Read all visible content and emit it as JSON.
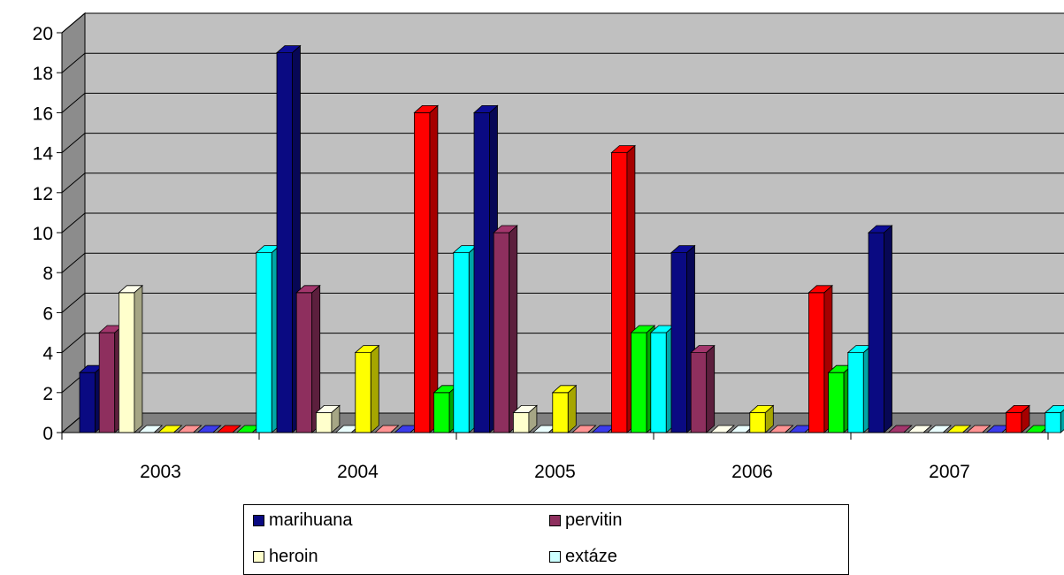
{
  "chart_data": {
    "type": "bar",
    "style": "3d-clustered-column",
    "categories": [
      "2003",
      "2004",
      "2005",
      "2006",
      "2007"
    ],
    "ylim": [
      0,
      20
    ],
    "yticks": [
      0,
      2,
      4,
      6,
      8,
      10,
      12,
      14,
      16,
      18,
      20
    ],
    "grid": true,
    "legend_position": "bottom",
    "series": [
      {
        "name": "marihuana",
        "color": "#0a0a82",
        "values": [
          3,
          19,
          16,
          9,
          10
        ]
      },
      {
        "name": "pervitin",
        "color": "#8e2f5e",
        "values": [
          5,
          7,
          10,
          4,
          0
        ]
      },
      {
        "name": "heroin",
        "color": "#ffffcc",
        "values": [
          7,
          1,
          1,
          0,
          0
        ]
      },
      {
        "name": "extáze",
        "color": "#ccffff",
        "values": [
          0,
          0,
          0,
          0,
          0
        ]
      },
      {
        "name": "",
        "color": "#ffff00",
        "values": [
          0,
          4,
          2,
          1,
          0
        ]
      },
      {
        "name": "",
        "color": "#ff8080",
        "values": [
          0,
          0,
          0,
          0,
          0
        ]
      },
      {
        "name": "",
        "color": "#3333cc",
        "values": [
          0,
          0,
          0,
          0,
          0
        ]
      },
      {
        "name": "",
        "color": "#ff0000",
        "values": [
          0,
          16,
          14,
          7,
          1
        ]
      },
      {
        "name": "",
        "color": "#00ff00",
        "values": [
          0,
          2,
          5,
          3,
          0
        ]
      },
      {
        "name": "",
        "color": "#00ffff",
        "values": [
          9,
          9,
          5,
          4,
          1
        ]
      }
    ]
  }
}
